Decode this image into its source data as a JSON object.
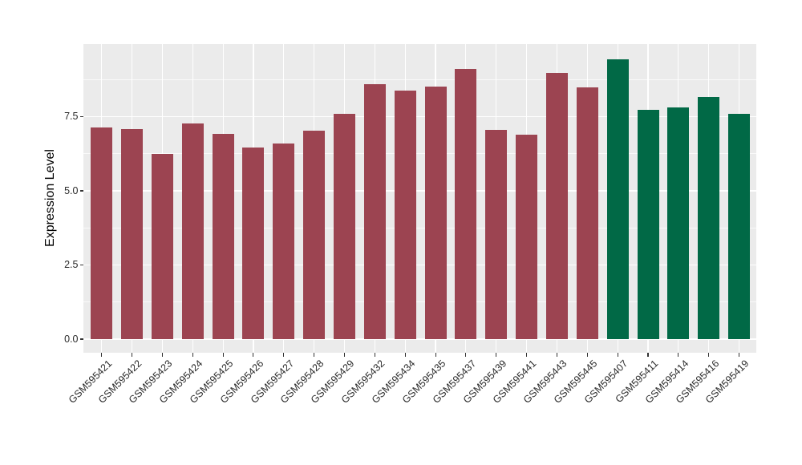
{
  "chart_data": {
    "type": "bar",
    "title": "",
    "xlabel": "",
    "ylabel": "Expression Level",
    "ylim": [
      0,
      9.95
    ],
    "ytick_labels": [
      "0.0",
      "2.5",
      "5.0",
      "7.5"
    ],
    "ytick_values": [
      0,
      2.5,
      5.0,
      7.5
    ],
    "grid": "white major+minor horizontal lines and white vertical lines at each category, on grey panel",
    "legend_position": "none",
    "panel_bg": "#EBEBEB",
    "figure_bg": "#FFFFFF",
    "tick_color": "#333333",
    "groups": [
      {
        "name": "group-1",
        "color": "#9C4451"
      },
      {
        "name": "group-2",
        "color": "#016946"
      }
    ],
    "bars": [
      {
        "label": "GSM595421",
        "value": 7.13,
        "group": 0
      },
      {
        "label": "GSM595422",
        "value": 7.07,
        "group": 0
      },
      {
        "label": "GSM595423",
        "value": 6.25,
        "group": 0
      },
      {
        "label": "GSM595424",
        "value": 7.27,
        "group": 0
      },
      {
        "label": "GSM595425",
        "value": 6.93,
        "group": 0
      },
      {
        "label": "GSM595426",
        "value": 6.47,
        "group": 0
      },
      {
        "label": "GSM595427",
        "value": 6.59,
        "group": 0
      },
      {
        "label": "GSM595428",
        "value": 7.03,
        "group": 0
      },
      {
        "label": "GSM595429",
        "value": 7.59,
        "group": 0
      },
      {
        "label": "GSM595432",
        "value": 8.59,
        "group": 0
      },
      {
        "label": "GSM595434",
        "value": 8.39,
        "group": 0
      },
      {
        "label": "GSM595435",
        "value": 8.51,
        "group": 0
      },
      {
        "label": "GSM595437",
        "value": 9.12,
        "group": 0
      },
      {
        "label": "GSM595439",
        "value": 7.05,
        "group": 0
      },
      {
        "label": "GSM595441",
        "value": 6.89,
        "group": 0
      },
      {
        "label": "GSM595443",
        "value": 8.96,
        "group": 0
      },
      {
        "label": "GSM595445",
        "value": 8.49,
        "group": 0
      },
      {
        "label": "GSM595407",
        "value": 9.44,
        "group": 1
      },
      {
        "label": "GSM595411",
        "value": 7.72,
        "group": 1
      },
      {
        "label": "GSM595414",
        "value": 7.82,
        "group": 1
      },
      {
        "label": "GSM595416",
        "value": 8.17,
        "group": 1
      },
      {
        "label": "GSM595419",
        "value": 7.6,
        "group": 1
      }
    ]
  }
}
